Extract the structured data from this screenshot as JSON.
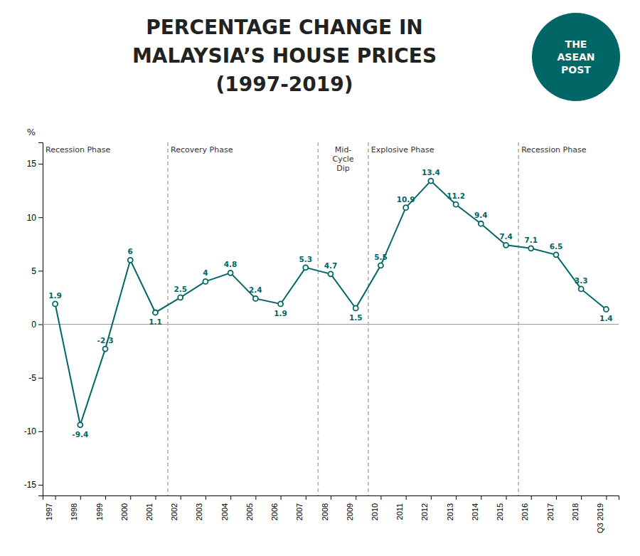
{
  "chart_data": {
    "type": "line",
    "title": [
      "PERCENTAGE CHANGE IN",
      "MALAYSIA’S HOUSE PRICES",
      "(1997-2019)"
    ],
    "y_label": "%",
    "categories": [
      "1997",
      "1998",
      "1999",
      "2000",
      "2001",
      "2002",
      "2003",
      "2004",
      "2005",
      "2006",
      "2007",
      "2008",
      "2009",
      "2010",
      "2011",
      "2012",
      "2013",
      "2014",
      "2015",
      "2016",
      "2017",
      "2018",
      "Q3 2019"
    ],
    "values": [
      1.9,
      -9.4,
      -2.3,
      6.0,
      1.1,
      2.5,
      4.0,
      4.8,
      2.4,
      1.9,
      5.3,
      4.7,
      1.5,
      5.5,
      10.9,
      13.4,
      11.2,
      9.4,
      7.4,
      7.1,
      6.5,
      3.3,
      1.4
    ],
    "color": "#006666",
    "ylim": [
      -16,
      17
    ],
    "yticks": [
      -15,
      -10,
      -5,
      0,
      5,
      10,
      15
    ],
    "grid": false,
    "data_labels": true,
    "marker": "circle",
    "phases": [
      {
        "text": "Recession Phase",
        "from": "1997",
        "to": "2001"
      },
      {
        "text": "Recovery Phase",
        "from": "2002",
        "to": "2007"
      },
      {
        "text": "Mid-\nCycle\nDip",
        "from": "2008",
        "to": "2009"
      },
      {
        "text": "Explosive Phase",
        "from": "2010",
        "to": "2015"
      },
      {
        "text": "Recession Phase",
        "from": "2016",
        "to": "Q3 2019"
      }
    ],
    "annotations": [
      "THE\nASEAN\nPOST"
    ]
  }
}
